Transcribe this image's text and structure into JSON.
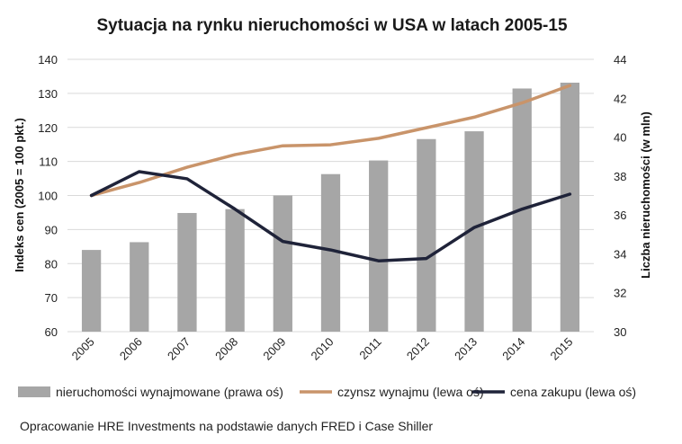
{
  "chart_data": {
    "type": "bar",
    "title": "Sytuacja na rynku nieruchomości w USA w latach 2005-15",
    "categories": [
      "2005",
      "2006",
      "2007",
      "2008",
      "2009",
      "2010",
      "2011",
      "2012",
      "2013",
      "2014",
      "2015"
    ],
    "ylabel_left": "Indeks cen (2005 = 100 pkt.)",
    "ylabel_right": "Liczba nieruchomości (w mln)",
    "ylim_left": [
      60,
      140
    ],
    "ylim_right": [
      30,
      44
    ],
    "yticks_left": [
      "60",
      "70",
      "80",
      "90",
      "100",
      "110",
      "120",
      "130",
      "140"
    ],
    "yticks_right": [
      "30",
      "32",
      "34",
      "36",
      "38",
      "40",
      "42",
      "44"
    ],
    "grid": true,
    "legend_position": "bottom",
    "series": [
      {
        "name": "nieruchomości wynajmowane (prawa oś)",
        "type": "bar",
        "axis": "right",
        "color": "#a6a6a6",
        "values": [
          34.2,
          34.6,
          36.1,
          36.3,
          37.0,
          38.1,
          38.8,
          39.9,
          40.3,
          42.5,
          42.8
        ]
      },
      {
        "name": "czynsz wynajmu (lewa oś)",
        "type": "line",
        "axis": "left",
        "color": "#c9946a",
        "values": [
          100,
          103.8,
          108.3,
          112,
          114.6,
          114.9,
          116.8,
          119.9,
          123,
          127.2,
          132.3
        ]
      },
      {
        "name": "cena zakupu (lewa oś)",
        "type": "line",
        "axis": "left",
        "color": "#1f2339",
        "values": [
          100,
          107,
          104.9,
          96,
          86.5,
          84,
          80.8,
          81.5,
          90.6,
          96,
          100.4
        ]
      }
    ]
  },
  "source_note": "Opracowanie HRE Investments na podstawie danych FRED i Case Shiller"
}
